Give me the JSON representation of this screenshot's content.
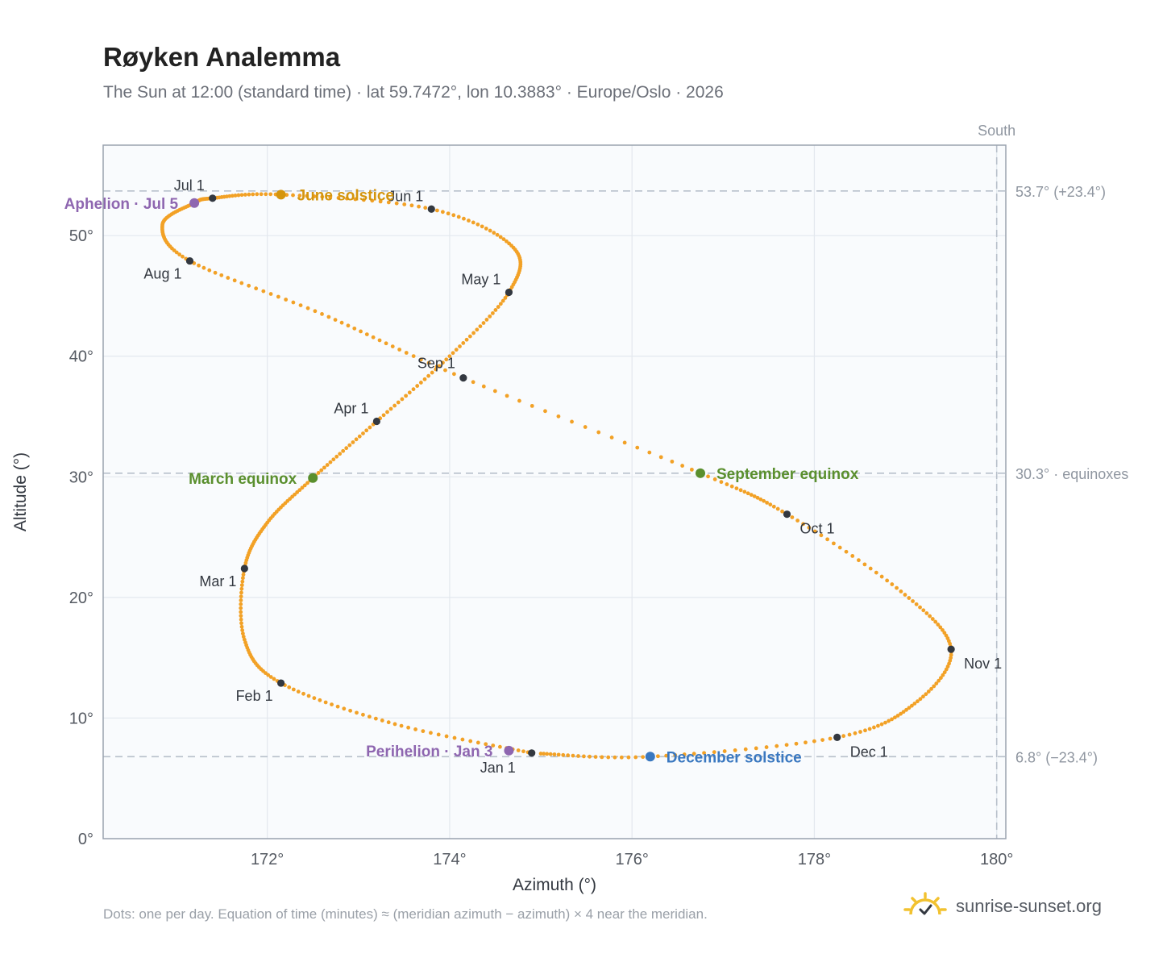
{
  "title": "Røyken Analemma",
  "subtitle": "The Sun at 12:00 (standard time) · lat 59.7472°, lon 10.3883° · Europe/Oslo · 2026",
  "footnote": "Dots: one per day. Equation of time (minutes) ≈ (meridian azimuth − azimuth) × 4 near the meridian.",
  "brand": {
    "text": "sunrise-sunset.org",
    "icon": "sun-logo-icon"
  },
  "colors": {
    "curve": "#f2a126",
    "month_marker": "#333840",
    "equinox": "#5a8f2e",
    "june_solstice": "#d4950e",
    "december_solstice": "#3a78c0",
    "apsis": "#8e66b0",
    "reference_line": "#b8c0cb",
    "grid": "#e3e8ee",
    "plot_bg": "#f9fbfd"
  },
  "chart_data": {
    "type": "scatter",
    "xlabel": "Azimuth (°)",
    "ylabel": "Altitude (°)",
    "xlim": [
      170.2,
      180.1
    ],
    "ylim": [
      0,
      57.5
    ],
    "x_ticks": [
      172,
      174,
      176,
      178,
      180
    ],
    "x_tick_labels": [
      "172°",
      "174°",
      "176°",
      "178°",
      "180°"
    ],
    "y_ticks": [
      0,
      10,
      20,
      30,
      40,
      50
    ],
    "y_tick_labels": [
      "0°",
      "10°",
      "20°",
      "30°",
      "40°",
      "50°"
    ],
    "grid": true,
    "meridian": {
      "azimuth": 180,
      "label": "South"
    },
    "reference_lines": [
      {
        "altitude": 53.7,
        "label": "53.7° (+23.4°)"
      },
      {
        "altitude": 30.3,
        "label": "30.3° · equinoxes"
      },
      {
        "altitude": 6.8,
        "label": "6.8° (−23.4°)"
      }
    ],
    "curve_anchor_points": [
      {
        "date": "Jan 1",
        "az": 174.9,
        "alt": 7.1
      },
      {
        "date": "Jan 16",
        "az": 173.4,
        "alt": 9.5
      },
      {
        "date": "Feb 1",
        "az": 172.15,
        "alt": 12.9
      },
      {
        "date": "Feb 14",
        "az": 171.75,
        "alt": 16.5
      },
      {
        "date": "Mar 1",
        "az": 171.75,
        "alt": 22.4
      },
      {
        "date": "Mar 10",
        "az": 172.0,
        "alt": 26.2
      },
      {
        "date": "Mar 20",
        "az": 172.5,
        "alt": 29.9
      },
      {
        "date": "Apr 1",
        "az": 173.2,
        "alt": 34.6
      },
      {
        "date": "Apr 15",
        "az": 174.0,
        "alt": 40.0
      },
      {
        "date": "May 1",
        "az": 174.65,
        "alt": 45.3
      },
      {
        "date": "May 14",
        "az": 174.7,
        "alt": 49.0
      },
      {
        "date": "Jun 1",
        "az": 173.8,
        "alt": 52.2
      },
      {
        "date": "Jun 21",
        "az": 172.15,
        "alt": 53.4
      },
      {
        "date": "Jul 1",
        "az": 171.4,
        "alt": 53.1
      },
      {
        "date": "Jul 5",
        "az": 171.2,
        "alt": 52.7
      },
      {
        "date": "Jul 18",
        "az": 170.85,
        "alt": 50.9
      },
      {
        "date": "Aug 1",
        "az": 171.15,
        "alt": 47.9
      },
      {
        "date": "Aug 16",
        "az": 172.6,
        "alt": 43.5
      },
      {
        "date": "Sep 1",
        "az": 174.15,
        "alt": 38.2
      },
      {
        "date": "Sep 23",
        "az": 176.75,
        "alt": 30.3
      },
      {
        "date": "Oct 1",
        "az": 177.7,
        "alt": 26.9
      },
      {
        "date": "Oct 16",
        "az": 178.95,
        "alt": 20.5
      },
      {
        "date": "Nov 1",
        "az": 179.5,
        "alt": 15.7
      },
      {
        "date": "Nov 16",
        "az": 179.1,
        "alt": 11.2
      },
      {
        "date": "Dec 1",
        "az": 178.25,
        "alt": 8.4
      },
      {
        "date": "Dec 21",
        "az": 176.2,
        "alt": 6.8
      },
      {
        "date": "Dec 31",
        "az": 175.0,
        "alt": 7.05
      }
    ],
    "month_markers": [
      {
        "label": "Jan 1",
        "az": 174.9,
        "alt": 7.1,
        "anchor": "middle"
      },
      {
        "label": "Feb 1",
        "az": 172.15,
        "alt": 12.9,
        "anchor": "end"
      },
      {
        "label": "Mar 1",
        "az": 171.75,
        "alt": 22.4,
        "anchor": "end"
      },
      {
        "label": "Apr 1",
        "az": 173.2,
        "alt": 34.6,
        "anchor": "end"
      },
      {
        "label": "May 1",
        "az": 174.65,
        "alt": 45.3,
        "anchor": "end"
      },
      {
        "label": "Jun 1",
        "az": 173.8,
        "alt": 52.2,
        "anchor": "end"
      },
      {
        "label": "Jul 1",
        "az": 171.4,
        "alt": 53.1,
        "anchor": "end"
      },
      {
        "label": "Aug 1",
        "az": 171.15,
        "alt": 47.9,
        "anchor": "end"
      },
      {
        "label": "Sep 1",
        "az": 174.15,
        "alt": 38.2,
        "anchor": "end"
      },
      {
        "label": "Oct 1",
        "az": 177.7,
        "alt": 26.9,
        "anchor": "start"
      },
      {
        "label": "Nov 1",
        "az": 179.5,
        "alt": 15.7,
        "anchor": "start"
      },
      {
        "label": "Dec 1",
        "az": 178.25,
        "alt": 8.4,
        "anchor": "start"
      }
    ],
    "events": [
      {
        "label": "March equinox",
        "az": 172.5,
        "alt": 29.9,
        "kind": "equinox",
        "anchor": "end"
      },
      {
        "label": "June solstice",
        "az": 172.15,
        "alt": 53.4,
        "kind": "june_solstice",
        "anchor": "start"
      },
      {
        "label": "September equinox",
        "az": 176.75,
        "alt": 30.3,
        "kind": "equinox",
        "anchor": "start"
      },
      {
        "label": "December solstice",
        "az": 176.2,
        "alt": 6.8,
        "kind": "december_solstice",
        "anchor": "start"
      },
      {
        "label": "Aphelion · Jul 5",
        "az": 171.2,
        "alt": 52.7,
        "kind": "apsis",
        "anchor": "end"
      },
      {
        "label": "Perihelion · Jan 3",
        "az": 174.65,
        "alt": 7.3,
        "kind": "apsis",
        "anchor": "end"
      }
    ]
  }
}
